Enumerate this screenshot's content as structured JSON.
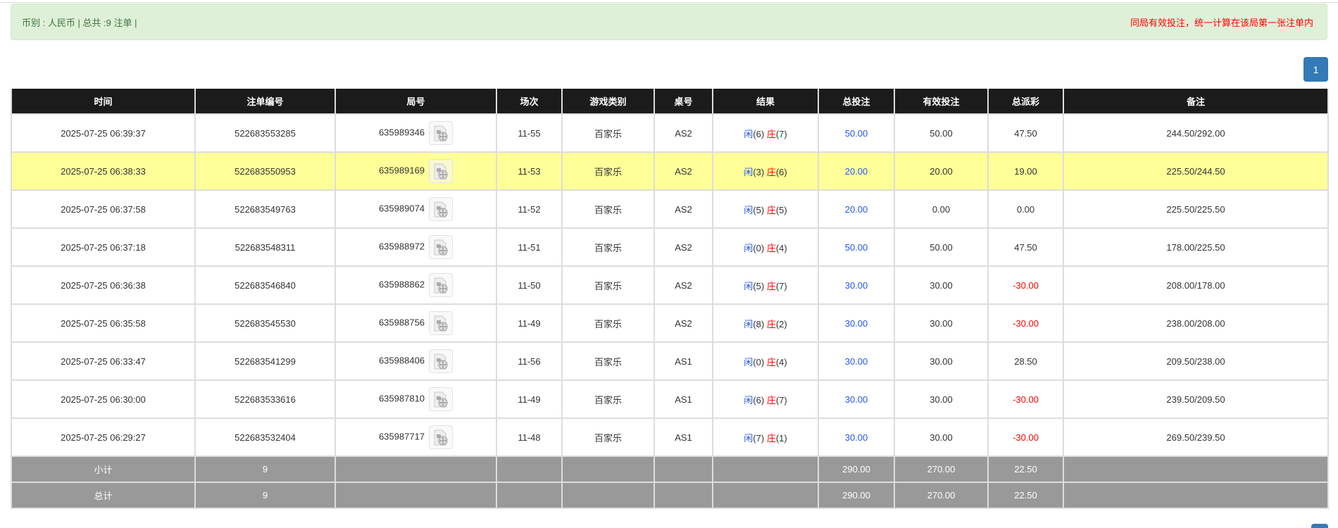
{
  "alert": {
    "left": "币别 : 人民币 | 总共 :9 注单 |",
    "right": "同局有效投注，统一计算在该局第一张注单内"
  },
  "pagination": {
    "current": "1"
  },
  "columns": [
    "时间",
    "注单编号",
    "局号",
    "场次",
    "游戏类别",
    "桌号",
    "结果",
    "总投注",
    "有效投注",
    "总派彩",
    "备注"
  ],
  "result_labels": {
    "player": "闲",
    "banker": "庄"
  },
  "colors": {
    "player": "#2255ff",
    "banker": "#ff0000",
    "highlight": "#ffff99",
    "header": "#1b1b1b",
    "summary": "#999999"
  },
  "rows": [
    {
      "time": "2025-07-25 06:39:37",
      "bet_no": "522683553285",
      "round": "635989346",
      "shoe": "11-55",
      "game": "百家乐",
      "table": "AS2",
      "player": "(6)",
      "banker": "(7)",
      "total_bet": "50.00",
      "valid_bet": "50.00",
      "payout": "47.50",
      "payout_negative": false,
      "note": "244.50/292.00",
      "highlight": false
    },
    {
      "time": "2025-07-25 06:38:33",
      "bet_no": "522683550953",
      "round": "635989169",
      "shoe": "11-53",
      "game": "百家乐",
      "table": "AS2",
      "player": "(3)",
      "banker": "(6)",
      "total_bet": "20.00",
      "valid_bet": "20.00",
      "payout": "19.00",
      "payout_negative": false,
      "note": "225.50/244.50",
      "highlight": true
    },
    {
      "time": "2025-07-25 06:37:58",
      "bet_no": "522683549763",
      "round": "635989074",
      "shoe": "11-52",
      "game": "百家乐",
      "table": "AS2",
      "player": "(5)",
      "banker": "(5)",
      "total_bet": "20.00",
      "valid_bet": "0.00",
      "payout": "0.00",
      "payout_negative": false,
      "note": "225.50/225.50",
      "highlight": false
    },
    {
      "time": "2025-07-25 06:37:18",
      "bet_no": "522683548311",
      "round": "635988972",
      "shoe": "11-51",
      "game": "百家乐",
      "table": "AS2",
      "player": "(0)",
      "banker": "(4)",
      "total_bet": "50.00",
      "valid_bet": "50.00",
      "payout": "47.50",
      "payout_negative": false,
      "note": "178.00/225.50",
      "highlight": false
    },
    {
      "time": "2025-07-25 06:36:38",
      "bet_no": "522683546840",
      "round": "635988862",
      "shoe": "11-50",
      "game": "百家乐",
      "table": "AS2",
      "player": "(5)",
      "banker": "(7)",
      "total_bet": "30.00",
      "valid_bet": "30.00",
      "payout": "-30.00",
      "payout_negative": true,
      "note": "208.00/178.00",
      "highlight": false
    },
    {
      "time": "2025-07-25 06:35:58",
      "bet_no": "522683545530",
      "round": "635988756",
      "shoe": "11-49",
      "game": "百家乐",
      "table": "AS2",
      "player": "(8)",
      "banker": "(2)",
      "total_bet": "30.00",
      "valid_bet": "30.00",
      "payout": "-30.00",
      "payout_negative": true,
      "note": "238.00/208.00",
      "highlight": false
    },
    {
      "time": "2025-07-25 06:33:47",
      "bet_no": "522683541299",
      "round": "635988406",
      "shoe": "11-56",
      "game": "百家乐",
      "table": "AS1",
      "player": "(0)",
      "banker": "(4)",
      "total_bet": "30.00",
      "valid_bet": "30.00",
      "payout": "28.50",
      "payout_negative": false,
      "note": "209.50/238.00",
      "highlight": false
    },
    {
      "time": "2025-07-25 06:30:00",
      "bet_no": "522683533616",
      "round": "635987810",
      "shoe": "11-49",
      "game": "百家乐",
      "table": "AS1",
      "player": "(6)",
      "banker": "(7)",
      "total_bet": "30.00",
      "valid_bet": "30.00",
      "payout": "-30.00",
      "payout_negative": true,
      "note": "239.50/209.50",
      "highlight": false
    },
    {
      "time": "2025-07-25 06:29:27",
      "bet_no": "522683532404",
      "round": "635987717",
      "shoe": "11-48",
      "game": "百家乐",
      "table": "AS1",
      "player": "(7)",
      "banker": "(1)",
      "total_bet": "30.00",
      "valid_bet": "30.00",
      "payout": "-30.00",
      "payout_negative": true,
      "note": "269.50/239.50",
      "highlight": false
    }
  ],
  "summary": [
    {
      "label": "小计",
      "count": "9",
      "total_bet": "290.00",
      "valid_bet": "270.00",
      "payout": "22.50"
    },
    {
      "label": "总计",
      "count": "9",
      "total_bet": "290.00",
      "valid_bet": "270.00",
      "payout": "22.50"
    }
  ]
}
